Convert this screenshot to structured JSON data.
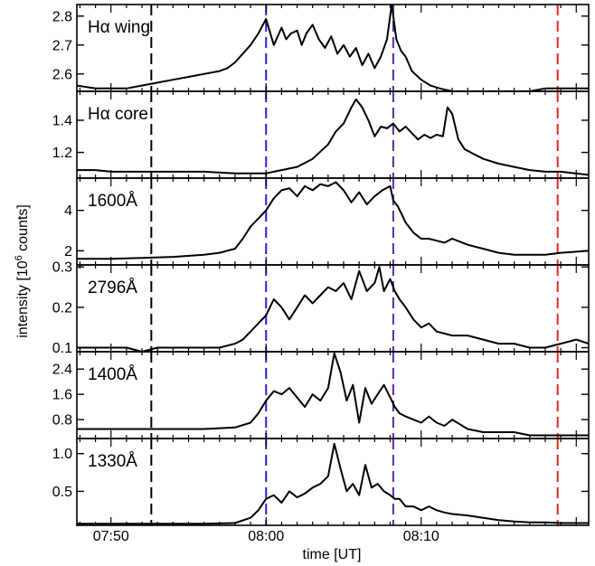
{
  "chart_data": {
    "type": "line",
    "xlabel": "time [UT]",
    "ylabel": "intensity [10",
    "ylabel_sup": "6",
    "ylabel_tail": " counts]",
    "x_ticks": [
      "07:50",
      "08:00",
      "08:10"
    ],
    "x_tick_values": [
      470,
      480,
      490
    ],
    "xlim": [
      467.8,
      500.8
    ],
    "vlines": [
      {
        "x": 472.6,
        "color": "#000000"
      },
      {
        "x": 480.0,
        "color": "#1f1fe6"
      },
      {
        "x": 488.2,
        "color": "#5a2ca0"
      },
      {
        "x": 498.8,
        "color": "#e6261f"
      }
    ],
    "panels": [
      {
        "label": "Hα wing",
        "ylim": [
          2.54,
          2.84
        ],
        "yticks": [
          "2.6",
          "2.7",
          "2.8"
        ],
        "ytick_values": [
          2.6,
          2.7,
          2.8
        ],
        "series": [
          {
            "x": [
              467.8,
              469,
              470,
              471,
              472,
              473,
              474,
              475,
              476,
              477,
              477.5,
              478,
              478.5,
              479,
              479.5,
              480,
              480.5,
              481,
              481.3,
              481.6,
              482,
              482.3,
              482.6,
              483,
              483.4,
              483.8,
              484.2,
              484.6,
              485,
              485.4,
              485.8,
              486.2,
              486.6,
              487,
              487.4,
              487.8,
              488.1,
              488.4,
              488.7,
              489,
              489.4,
              490,
              490.6,
              491.2,
              492,
              493,
              494,
              495,
              496,
              497,
              498,
              499,
              500,
              500.8
            ],
            "y": [
              2.56,
              2.55,
              2.55,
              2.55,
              2.56,
              2.57,
              2.58,
              2.59,
              2.6,
              2.61,
              2.62,
              2.64,
              2.67,
              2.7,
              2.74,
              2.79,
              2.7,
              2.76,
              2.72,
              2.74,
              2.75,
              2.7,
              2.74,
              2.77,
              2.72,
              2.69,
              2.73,
              2.67,
              2.7,
              2.66,
              2.69,
              2.63,
              2.67,
              2.62,
              2.66,
              2.72,
              2.84,
              2.72,
              2.68,
              2.66,
              2.61,
              2.58,
              2.56,
              2.55,
              2.54,
              2.54,
              2.54,
              2.54,
              2.54,
              2.54,
              2.55,
              2.55,
              2.55,
              2.55
            ]
          }
        ]
      },
      {
        "label": "Hα core",
        "ylim": [
          1.04,
          1.58
        ],
        "yticks": [
          "1.2",
          "1.4"
        ],
        "ytick_values": [
          1.2,
          1.4
        ],
        "series": [
          {
            "x": [
              467.8,
              469,
              470,
              472,
              474,
              476,
              478,
              479,
              480,
              481,
              482,
              483,
              484,
              484.5,
              485,
              485.5,
              485.8,
              486.2,
              486.6,
              487,
              487.4,
              487.8,
              488.2,
              488.6,
              489,
              489.4,
              489.8,
              490.2,
              490.6,
              491,
              491.4,
              491.7,
              492,
              492.4,
              492.8,
              493.2,
              494,
              495,
              496,
              497,
              498,
              499,
              500.8
            ],
            "y": [
              1.09,
              1.09,
              1.08,
              1.08,
              1.08,
              1.08,
              1.07,
              1.07,
              1.07,
              1.09,
              1.11,
              1.16,
              1.25,
              1.33,
              1.38,
              1.48,
              1.53,
              1.48,
              1.4,
              1.3,
              1.36,
              1.35,
              1.38,
              1.33,
              1.36,
              1.32,
              1.28,
              1.31,
              1.29,
              1.31,
              1.3,
              1.48,
              1.44,
              1.28,
              1.22,
              1.2,
              1.16,
              1.13,
              1.11,
              1.09,
              1.08,
              1.08,
              1.06
            ]
          }
        ]
      },
      {
        "label": "1600Å",
        "ylim": [
          1.3,
          5.6
        ],
        "yticks": [
          "2",
          "4"
        ],
        "ytick_values": [
          2,
          4
        ],
        "series": [
          {
            "x": [
              467.8,
              469,
              470,
              472,
              474,
              476,
              477,
              478,
              478.5,
              479,
              479.5,
              480,
              480.5,
              481,
              481.5,
              482,
              482.5,
              483,
              483.5,
              484,
              484.5,
              485,
              485.5,
              486,
              486.5,
              487,
              487.5,
              488,
              488.2,
              488.5,
              489,
              489.5,
              490,
              490.5,
              491,
              491.5,
              492,
              493,
              494,
              495,
              496,
              497,
              498,
              499,
              500.8
            ],
            "y": [
              1.6,
              1.6,
              1.6,
              1.65,
              1.7,
              1.8,
              1.9,
              2.1,
              2.6,
              3.2,
              3.6,
              4.0,
              4.6,
              5.0,
              5.1,
              4.7,
              5.2,
              5.0,
              5.3,
              5.2,
              5.4,
              5.0,
              4.4,
              4.9,
              4.3,
              4.7,
              5.0,
              5.2,
              4.5,
              4.2,
              3.4,
              2.9,
              2.6,
              2.6,
              2.5,
              2.4,
              2.6,
              2.3,
              2.1,
              1.9,
              1.8,
              1.8,
              1.8,
              1.9,
              2.0
            ]
          }
        ]
      },
      {
        "label": "2796Å",
        "ylim": [
          0.09,
          0.305
        ],
        "yticks": [
          "0.1",
          "0.2",
          "0.3"
        ],
        "ytick_values": [
          0.1,
          0.2,
          0.3
        ],
        "series": [
          {
            "x": [
              467.8,
              469,
              470,
              471,
              472,
              473,
              474,
              475,
              476,
              477,
              478,
              478.5,
              479,
              479.5,
              480,
              480.5,
              481,
              481.5,
              482,
              482.5,
              483,
              483.5,
              484,
              484.5,
              485,
              485.5,
              486,
              486.5,
              487,
              487.3,
              487.6,
              488,
              488.3,
              488.6,
              489,
              489.5,
              490,
              490.5,
              491,
              492,
              493,
              494,
              495,
              496,
              497,
              498,
              499,
              500,
              500.8
            ],
            "y": [
              0.1,
              0.1,
              0.1,
              0.1,
              0.09,
              0.1,
              0.1,
              0.1,
              0.1,
              0.1,
              0.11,
              0.12,
              0.14,
              0.16,
              0.18,
              0.22,
              0.2,
              0.17,
              0.2,
              0.23,
              0.21,
              0.23,
              0.25,
              0.24,
              0.26,
              0.22,
              0.29,
              0.24,
              0.26,
              0.3,
              0.24,
              0.27,
              0.24,
              0.22,
              0.2,
              0.17,
              0.15,
              0.16,
              0.14,
              0.13,
              0.13,
              0.12,
              0.11,
              0.11,
              0.1,
              0.1,
              0.11,
              0.12,
              0.11
            ]
          }
        ]
      },
      {
        "label": "1400Å",
        "ylim": [
          0.2,
          2.95
        ],
        "yticks": [
          "0.8",
          "1.6",
          "2.4"
        ],
        "ytick_values": [
          0.8,
          1.6,
          2.4
        ],
        "series": [
          {
            "x": [
              467.8,
              469,
              470,
              472,
              474,
              476,
              478,
              479,
              479.5,
              480,
              480.5,
              481,
              481.5,
              482,
              482.5,
              483,
              483.5,
              484,
              484.4,
              484.8,
              485.2,
              485.6,
              486,
              486.4,
              486.8,
              487.2,
              487.6,
              488,
              488.3,
              488.6,
              489,
              489.5,
              490,
              490.5,
              491,
              491.5,
              492,
              493,
              494,
              495,
              496,
              497,
              498,
              499,
              500.8
            ],
            "y": [
              0.5,
              0.5,
              0.5,
              0.5,
              0.5,
              0.5,
              0.55,
              0.7,
              1.0,
              1.4,
              1.7,
              1.6,
              1.8,
              1.5,
              1.2,
              1.6,
              1.4,
              1.8,
              2.9,
              2.3,
              1.4,
              1.9,
              0.7,
              1.8,
              1.3,
              1.6,
              1.9,
              1.5,
              1.2,
              1.0,
              0.9,
              0.8,
              0.7,
              0.9,
              0.7,
              0.6,
              0.8,
              0.5,
              0.4,
              0.4,
              0.4,
              0.3,
              0.3,
              0.3,
              0.3
            ]
          }
        ]
      },
      {
        "label": "1330Å",
        "ylim": [
          0.05,
          1.2
        ],
        "yticks": [
          "0.5",
          "1.0"
        ],
        "ytick_values": [
          0.5,
          1.0
        ],
        "series": [
          {
            "x": [
              467.8,
              469,
              470,
              472,
              474,
              476,
              478,
              479,
              479.5,
              480,
              480.5,
              481,
              481.5,
              482,
              482.5,
              483,
              483.5,
              484,
              484.4,
              484.8,
              485.2,
              485.6,
              486,
              486.4,
              486.8,
              487.2,
              487.6,
              488,
              488.3,
              488.6,
              489,
              489.5,
              490,
              490.5,
              491,
              491.5,
              492,
              493,
              494,
              495,
              496,
              497,
              498,
              499,
              500.8
            ],
            "y": [
              0.07,
              0.07,
              0.07,
              0.07,
              0.07,
              0.07,
              0.08,
              0.15,
              0.25,
              0.4,
              0.45,
              0.35,
              0.5,
              0.42,
              0.47,
              0.55,
              0.6,
              0.7,
              1.13,
              0.8,
              0.5,
              0.6,
              0.45,
              0.85,
              0.55,
              0.6,
              0.5,
              0.45,
              0.4,
              0.4,
              0.3,
              0.3,
              0.25,
              0.3,
              0.25,
              0.22,
              0.2,
              0.18,
              0.15,
              0.12,
              0.1,
              0.09,
              0.09,
              0.08,
              0.08
            ]
          }
        ]
      }
    ]
  }
}
